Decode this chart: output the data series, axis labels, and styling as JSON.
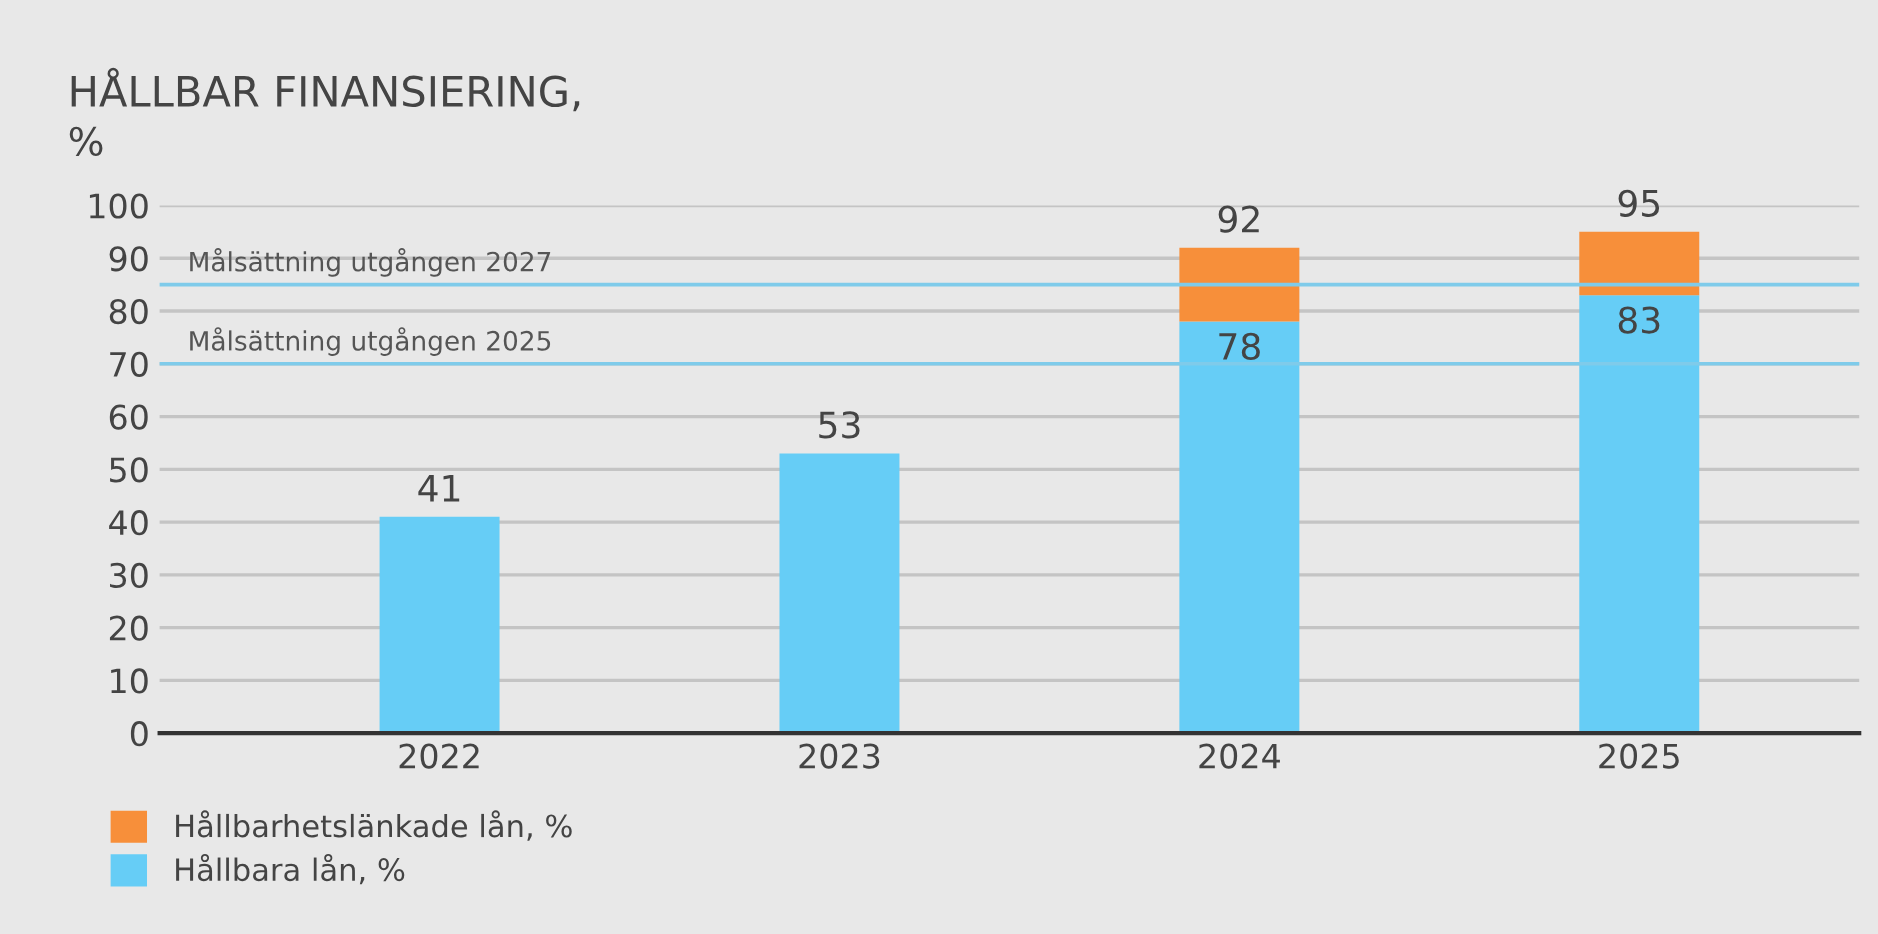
{
  "chart_data": {
    "type": "bar",
    "title": "HÅLLBAR FINANSIERING,",
    "ylabel": "%",
    "categories": [
      "2022",
      "2023",
      "2024",
      "2025"
    ],
    "stacked": true,
    "series": [
      {
        "name": "Hållbara lån, %",
        "color": "#66cdf6",
        "values": [
          41,
          53,
          78,
          83
        ],
        "value_labels": [
          "41",
          "53",
          "78",
          "83"
        ]
      },
      {
        "name": "Hållbarhetslänkade lån, %",
        "color": "#f78f3a",
        "values": [
          null,
          null,
          14,
          12
        ]
      }
    ],
    "totals": [
      null,
      null,
      "92",
      "95"
    ],
    "ylim": [
      0,
      100
    ],
    "yticks": [
      0,
      10,
      20,
      30,
      40,
      50,
      60,
      70,
      80,
      90,
      100
    ],
    "grid": "y",
    "ref_lines": [
      {
        "axis": "y",
        "value": 85,
        "label": "Målsättning utgången 2027",
        "color": "#7fcbea"
      },
      {
        "axis": "y",
        "value": 70,
        "label": "Målsättning utgången 2025",
        "color": "#7fcbea"
      }
    ],
    "legend": "bottom left"
  }
}
